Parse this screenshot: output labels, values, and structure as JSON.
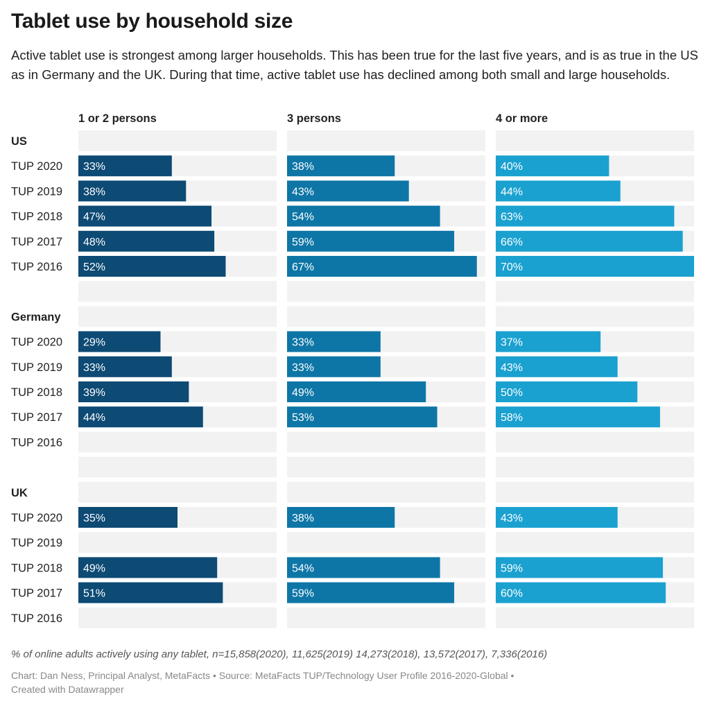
{
  "title": "Tablet use by household size",
  "subtitle": "Active tablet use is strongest among larger households. This has been true for the last five years, and is as true in the US as in Germany and the UK. During that time, active tablet use has declined among both small and large households.",
  "note": "% of online adults actively using any tablet, n=15,858(2020), 11,625(2019) 14,273(2018), 13,572(2017), 7,336(2016)",
  "footer": {
    "chart_credit": "Chart: Dan Ness, Principal Analyst, MetaFacts",
    "source": "Source: MetaFacts TUP/Technology User Profile 2016-2020-Global",
    "tool": "Created with Datawrapper",
    "separator": "•"
  },
  "chart_data": {
    "type": "bar",
    "orientation": "horizontal",
    "value_suffix": "%",
    "xlim": [
      0,
      70
    ],
    "columns": [
      "1 or 2 persons",
      "3 persons",
      "4 or more"
    ],
    "colors": [
      "#0d4a74",
      "#0e76a6",
      "#1aa1d0"
    ],
    "background_color": "#f2f2f2",
    "groups": [
      {
        "name": "US",
        "rows": [
          {
            "label": "TUP 2020",
            "values": [
              33,
              38,
              40
            ]
          },
          {
            "label": "TUP 2019",
            "values": [
              38,
              43,
              44
            ]
          },
          {
            "label": "TUP 2018",
            "values": [
              47,
              54,
              63
            ]
          },
          {
            "label": "TUP 2017",
            "values": [
              48,
              59,
              66
            ]
          },
          {
            "label": "TUP 2016",
            "values": [
              52,
              67,
              70
            ]
          }
        ]
      },
      {
        "name": "Germany",
        "rows": [
          {
            "label": "TUP 2020",
            "values": [
              29,
              33,
              37
            ]
          },
          {
            "label": "TUP 2019",
            "values": [
              33,
              33,
              43
            ]
          },
          {
            "label": "TUP 2018",
            "values": [
              39,
              49,
              50
            ]
          },
          {
            "label": "TUP 2017",
            "values": [
              44,
              53,
              58
            ]
          },
          {
            "label": "TUP 2016",
            "values": [
              null,
              null,
              null
            ]
          }
        ]
      },
      {
        "name": "UK",
        "rows": [
          {
            "label": "TUP 2020",
            "values": [
              35,
              38,
              43
            ]
          },
          {
            "label": "TUP 2019",
            "values": [
              null,
              null,
              null
            ]
          },
          {
            "label": "TUP 2018",
            "values": [
              49,
              54,
              59
            ]
          },
          {
            "label": "TUP 2017",
            "values": [
              51,
              59,
              60
            ]
          },
          {
            "label": "TUP 2016",
            "values": [
              null,
              null,
              null
            ]
          }
        ]
      }
    ]
  }
}
